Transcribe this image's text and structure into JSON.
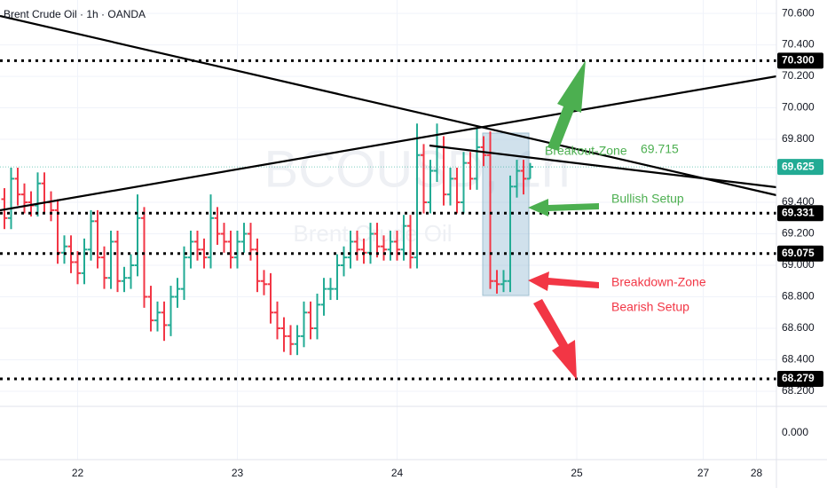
{
  "chart_data": {
    "type": "ohlc",
    "title": "Brent Crude Oil · 1h · OANDA",
    "watermark": "BCOUSD, 1h",
    "watermark_sub": "Brent Crude Oil",
    "up_color": "#22ab94",
    "down_color": "#f23645",
    "open": [
      69.42,
      69.3,
      69.55,
      69.45,
      69.4,
      69.38,
      69.52,
      69.4,
      69.35,
      69.08,
      69.12,
      69.02,
      68.95,
      69.1,
      69.28,
      69.05,
      68.92,
      69.15,
      68.9,
      68.92,
      69.0,
      69.3,
      68.8,
      68.65,
      68.7,
      68.62,
      68.8,
      68.85,
      69.05,
      69.15,
      69.1,
      69.05,
      69.3,
      69.2,
      69.15,
      69.05,
      69.15,
      69.2,
      69.1,
      68.9,
      68.88,
      68.7,
      68.6,
      68.55,
      68.5,
      68.55,
      68.7,
      68.6,
      68.75,
      68.85,
      68.85,
      69.0,
      69.05,
      69.15,
      69.1,
      69.08,
      69.2,
      69.12,
      69.1,
      69.15,
      69.1,
      69.25,
      69.05,
      69.7,
      69.4,
      69.6,
      69.75,
      69.45,
      69.55,
      69.4,
      69.65,
      69.55,
      69.75,
      69.7,
      68.9,
      68.88,
      68.9,
      69.5,
      69.6,
      69.55
    ],
    "high": [
      69.49,
      69.62,
      69.62,
      69.52,
      69.47,
      69.59,
      69.59,
      69.47,
      69.42,
      69.19,
      69.19,
      69.09,
      69.17,
      69.35,
      69.35,
      69.12,
      69.22,
      69.22,
      68.99,
      69.07,
      69.45,
      69.37,
      68.87,
      68.77,
      68.77,
      68.87,
      68.92,
      69.12,
      69.22,
      69.22,
      69.17,
      69.45,
      69.37,
      69.27,
      69.22,
      69.22,
      69.27,
      69.27,
      69.17,
      68.97,
      68.95,
      68.77,
      68.67,
      68.62,
      68.62,
      68.77,
      68.77,
      68.82,
      68.92,
      68.92,
      69.07,
      69.12,
      69.22,
      69.22,
      69.17,
      69.27,
      69.27,
      69.19,
      69.22,
      69.22,
      69.32,
      69.32,
      69.9,
      69.77,
      69.67,
      69.9,
      69.82,
      69.62,
      69.62,
      69.72,
      69.72,
      69.87,
      69.82,
      69.85,
      68.97,
      68.97,
      69.57,
      69.67,
      69.67,
      69.65
    ],
    "low": [
      69.23,
      69.23,
      69.38,
      69.33,
      69.31,
      69.31,
      69.33,
      69.28,
      69.01,
      69.01,
      68.95,
      68.88,
      68.88,
      69.03,
      68.98,
      68.85,
      68.85,
      68.83,
      68.83,
      68.85,
      68.93,
      68.73,
      68.58,
      68.58,
      68.52,
      68.55,
      68.73,
      68.78,
      68.98,
      69.03,
      68.98,
      68.98,
      69.13,
      69.08,
      68.98,
      68.98,
      69.08,
      69.03,
      68.83,
      68.81,
      68.63,
      68.53,
      68.45,
      68.43,
      68.43,
      68.48,
      68.53,
      68.53,
      68.68,
      68.78,
      68.78,
      68.93,
      68.98,
      69.03,
      69.01,
      69.01,
      69.05,
      69.03,
      69.03,
      69.03,
      69.03,
      68.98,
      68.98,
      69.33,
      69.33,
      69.53,
      69.38,
      69.38,
      69.33,
      69.33,
      69.48,
      69.48,
      69.63,
      68.85,
      68.82,
      68.83,
      68.83,
      69.43,
      69.45,
      69.55
    ],
    "close": [
      69.3,
      69.55,
      69.45,
      69.4,
      69.38,
      69.52,
      69.4,
      69.35,
      69.08,
      69.12,
      69.02,
      68.95,
      69.1,
      69.28,
      69.05,
      68.92,
      69.15,
      68.9,
      68.92,
      69.0,
      69.3,
      68.8,
      68.65,
      68.7,
      68.62,
      68.8,
      68.85,
      69.05,
      69.15,
      69.1,
      69.05,
      69.3,
      69.2,
      69.15,
      69.05,
      69.15,
      69.2,
      69.1,
      68.9,
      68.88,
      68.7,
      68.6,
      68.55,
      68.5,
      68.55,
      68.7,
      68.6,
      68.75,
      68.85,
      68.85,
      69.0,
      69.05,
      69.15,
      69.1,
      69.08,
      69.2,
      69.12,
      69.1,
      69.15,
      69.1,
      69.25,
      69.05,
      69.7,
      69.4,
      69.6,
      69.75,
      69.45,
      69.55,
      69.4,
      69.65,
      69.55,
      69.75,
      69.7,
      68.9,
      68.88,
      68.9,
      69.5,
      69.6,
      69.55,
      69.625
    ],
    "xlim": [
      -0.667,
      116
    ],
    "xticks": [
      {
        "value": 11,
        "label": "22"
      },
      {
        "value": 35,
        "label": "23"
      },
      {
        "value": 59,
        "label": "24"
      },
      {
        "value": 86,
        "label": "25"
      },
      {
        "value": 105,
        "label": "27"
      },
      {
        "value": 113,
        "label": "28"
      }
    ],
    "ylim": [
      68.104,
      70.685
    ],
    "yticks": [
      {
        "value": 70.6,
        "label": "70.600"
      },
      {
        "value": 70.4,
        "label": "70.400"
      },
      {
        "value": 70.2,
        "label": "70.200"
      },
      {
        "value": 70.0,
        "label": "70.000"
      },
      {
        "value": 69.8,
        "label": "69.800"
      },
      {
        "value": 69.4,
        "label": "69.400"
      },
      {
        "value": 69.2,
        "label": "69.200"
      },
      {
        "value": 69.0,
        "label": "69.000"
      },
      {
        "value": 68.8,
        "label": "68.800"
      },
      {
        "value": 68.6,
        "label": "68.600"
      },
      {
        "value": 68.4,
        "label": "68.400"
      },
      {
        "value": 68.2,
        "label": "68.200"
      }
    ],
    "pane2_ytick": {
      "value": 0,
      "label": "0.000"
    },
    "grid": true,
    "levels": [
      {
        "value": 70.3,
        "label": "70.300"
      },
      {
        "value": 69.331,
        "label": "69.331"
      },
      {
        "value": 69.075,
        "label": "69.075"
      },
      {
        "value": 68.279,
        "label": "68.279"
      }
    ],
    "last_price": {
      "value": 69.625,
      "label": "69.625"
    },
    "annotations": {
      "breakout": "Breakout-Zone",
      "breakout_price": 69.715,
      "bullish": "Bullish Setup",
      "breakdown": "Breakdown-Zone",
      "bearish": "Bearish Setup"
    }
  }
}
